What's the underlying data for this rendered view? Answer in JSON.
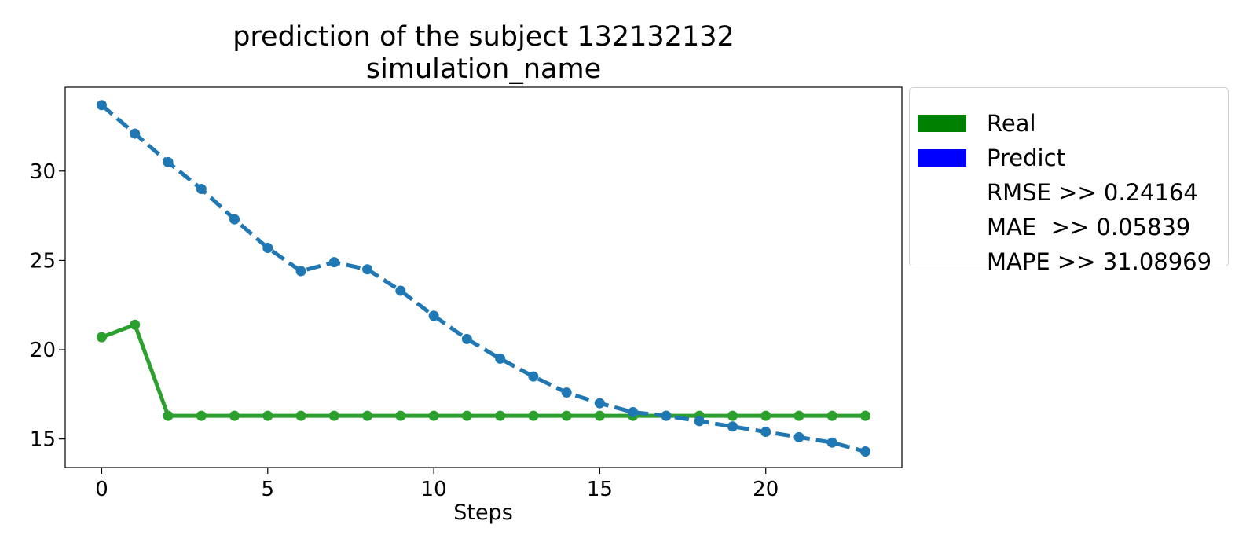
{
  "title": {
    "line1": "prediction of the subject 132132132",
    "line2": "simulation_name"
  },
  "legend": {
    "items": [
      {
        "label": "Real",
        "color": "#008000"
      },
      {
        "label": "Predict",
        "color": "#0000ff"
      },
      {
        "label": "RMSE >> 0.24164",
        "color": ""
      },
      {
        "label": "MAE  >> 0.05839",
        "color": ""
      },
      {
        "label": "MAPE >> 31.08969",
        "color": ""
      }
    ]
  },
  "chart_data": {
    "type": "line",
    "title": "prediction of the subject 132132132\nsimulation_name",
    "xlabel": "Steps",
    "ylabel": "",
    "xlim": [
      -1.1,
      24.1
    ],
    "ylim": [
      13.4,
      34.7
    ],
    "xticks": [
      0,
      5,
      10,
      15,
      20
    ],
    "yticks": [
      15,
      20,
      25,
      30
    ],
    "grid": false,
    "legend_position": "outside-right-top",
    "x": [
      0,
      1,
      2,
      3,
      4,
      5,
      6,
      7,
      8,
      9,
      10,
      11,
      12,
      13,
      14,
      15,
      16,
      17,
      18,
      19,
      20,
      21,
      22,
      23
    ],
    "series": [
      {
        "name": "Real",
        "color": "#2ca02c",
        "style": "solid",
        "values": [
          20.7,
          21.4,
          16.3,
          16.3,
          16.3,
          16.3,
          16.3,
          16.3,
          16.3,
          16.3,
          16.3,
          16.3,
          16.3,
          16.3,
          16.3,
          16.3,
          16.3,
          16.3,
          16.3,
          16.3,
          16.3,
          16.3,
          16.3,
          16.3
        ]
      },
      {
        "name": "Predict",
        "color": "#1f77b4",
        "style": "dashed",
        "values": [
          33.7,
          32.1,
          30.5,
          29.0,
          27.3,
          25.7,
          24.4,
          24.9,
          24.5,
          23.3,
          21.9,
          20.6,
          19.5,
          18.5,
          17.6,
          17.0,
          16.5,
          16.3,
          16.0,
          15.7,
          15.4,
          15.1,
          14.8,
          14.3
        ]
      }
    ]
  }
}
